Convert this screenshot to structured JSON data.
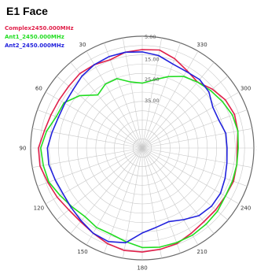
{
  "header": {
    "title": "E1 Face"
  },
  "chart_data": {
    "type": "polar-line",
    "title": "E1 Face",
    "angle_direction": "counterclockwise",
    "zero_angle_position": "top",
    "radial_ticks": [
      "5.00",
      "15.00",
      "25.00",
      "35.00"
    ],
    "angle_labels": [
      {
        "angle": 0,
        "label": ""
      },
      {
        "angle": 30,
        "label": "30"
      },
      {
        "angle": 60,
        "label": "60"
      },
      {
        "angle": 90,
        "label": "90"
      },
      {
        "angle": 120,
        "label": "120"
      },
      {
        "angle": 150,
        "label": "150"
      },
      {
        "angle": 180,
        "label": "180"
      },
      {
        "angle": 210,
        "label": "210"
      },
      {
        "angle": 240,
        "label": "240"
      },
      {
        "angle": 270,
        "label": "270"
      },
      {
        "angle": 300,
        "label": "300"
      },
      {
        "angle": 330,
        "label": "330"
      }
    ],
    "angle_ticks_deg": [
      0,
      30,
      60,
      90,
      120,
      150,
      180,
      210,
      240,
      270,
      300,
      330
    ],
    "rings": 12,
    "spokes": 36,
    "grid": true,
    "legend_position": "top-left",
    "series": [
      {
        "name": "Complex2450.000MHz",
        "color": "#e0204a",
        "points": [
          [
            0,
            0.88
          ],
          [
            10,
            0.87
          ],
          [
            20,
            0.84
          ],
          [
            30,
            0.86
          ],
          [
            40,
            0.87
          ],
          [
            50,
            0.86
          ],
          [
            60,
            0.86
          ],
          [
            70,
            0.87
          ],
          [
            80,
            0.89
          ],
          [
            90,
            0.93
          ],
          [
            100,
            0.93
          ],
          [
            110,
            0.9
          ],
          [
            120,
            0.88
          ],
          [
            130,
            0.86
          ],
          [
            140,
            0.86
          ],
          [
            150,
            0.88
          ],
          [
            160,
            0.91
          ],
          [
            170,
            0.93
          ],
          [
            180,
            0.93
          ],
          [
            190,
            0.92
          ],
          [
            200,
            0.91
          ],
          [
            210,
            0.88
          ],
          [
            220,
            0.86
          ],
          [
            230,
            0.86
          ],
          [
            240,
            0.86
          ],
          [
            250,
            0.87
          ],
          [
            260,
            0.86
          ],
          [
            270,
            0.85
          ],
          [
            280,
            0.87
          ],
          [
            290,
            0.88
          ],
          [
            300,
            0.86
          ],
          [
            310,
            0.82
          ],
          [
            320,
            0.77
          ],
          [
            330,
            0.8
          ],
          [
            340,
            0.85
          ],
          [
            350,
            0.89
          ],
          [
            360,
            0.88
          ]
        ]
      },
      {
        "name": "Ant1_2450.000MHz",
        "color": "#22dd22",
        "points": [
          [
            0,
            0.58
          ],
          [
            10,
            0.6
          ],
          [
            20,
            0.66
          ],
          [
            30,
            0.66
          ],
          [
            40,
            0.62
          ],
          [
            50,
            0.73
          ],
          [
            60,
            0.81
          ],
          [
            70,
            0.82
          ],
          [
            80,
            0.87
          ],
          [
            90,
            0.91
          ],
          [
            100,
            0.9
          ],
          [
            110,
            0.89
          ],
          [
            120,
            0.85
          ],
          [
            130,
            0.82
          ],
          [
            140,
            0.8
          ],
          [
            150,
            0.82
          ],
          [
            160,
            0.82
          ],
          [
            170,
            0.85
          ],
          [
            180,
            0.89
          ],
          [
            190,
            0.9
          ],
          [
            200,
            0.9
          ],
          [
            210,
            0.9
          ],
          [
            220,
            0.89
          ],
          [
            230,
            0.88
          ],
          [
            240,
            0.86
          ],
          [
            250,
            0.86
          ],
          [
            260,
            0.86
          ],
          [
            270,
            0.86
          ],
          [
            280,
            0.87
          ],
          [
            290,
            0.86
          ],
          [
            300,
            0.83
          ],
          [
            310,
            0.8
          ],
          [
            320,
            0.77
          ],
          [
            330,
            0.74
          ],
          [
            340,
            0.68
          ],
          [
            350,
            0.62
          ],
          [
            360,
            0.58
          ]
        ]
      },
      {
        "name": "Ant2_2450.000MHz",
        "color": "#2222dd",
        "points": [
          [
            0,
            0.86
          ],
          [
            10,
            0.87
          ],
          [
            20,
            0.87
          ],
          [
            30,
            0.86
          ],
          [
            40,
            0.84
          ],
          [
            50,
            0.81
          ],
          [
            60,
            0.8
          ],
          [
            70,
            0.8
          ],
          [
            80,
            0.82
          ],
          [
            90,
            0.85
          ],
          [
            100,
            0.85
          ],
          [
            110,
            0.83
          ],
          [
            120,
            0.82
          ],
          [
            130,
            0.83
          ],
          [
            140,
            0.85
          ],
          [
            150,
            0.88
          ],
          [
            160,
            0.89
          ],
          [
            170,
            0.86
          ],
          [
            180,
            0.76
          ],
          [
            190,
            0.72
          ],
          [
            200,
            0.7
          ],
          [
            210,
            0.74
          ],
          [
            220,
            0.79
          ],
          [
            230,
            0.81
          ],
          [
            240,
            0.81
          ],
          [
            250,
            0.79
          ],
          [
            260,
            0.77
          ],
          [
            270,
            0.76
          ],
          [
            280,
            0.76
          ],
          [
            290,
            0.73
          ],
          [
            300,
            0.73
          ],
          [
            310,
            0.78
          ],
          [
            320,
            0.8
          ],
          [
            330,
            0.79
          ],
          [
            340,
            0.8
          ],
          [
            350,
            0.84
          ],
          [
            360,
            0.86
          ]
        ]
      }
    ]
  }
}
